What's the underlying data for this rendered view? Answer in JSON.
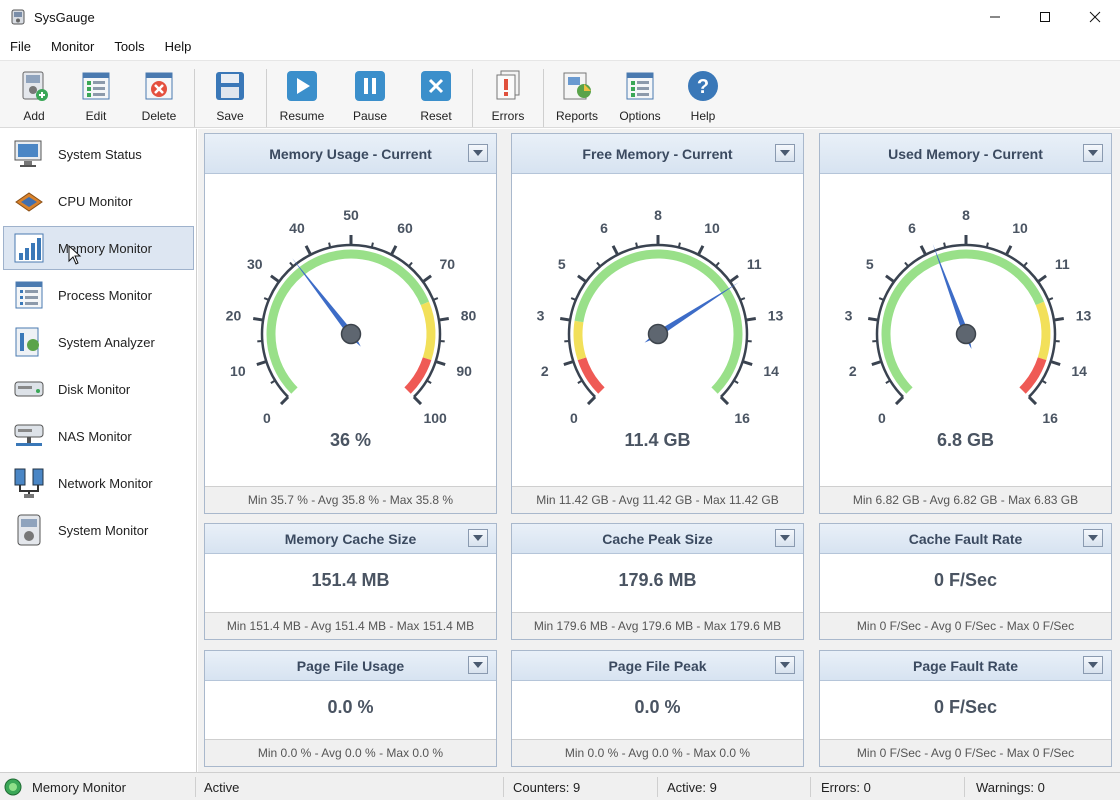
{
  "window": {
    "title": "SysGauge"
  },
  "menu": [
    "File",
    "Monitor",
    "Tools",
    "Help"
  ],
  "toolbar": {
    "add": "Add",
    "edit": "Edit",
    "delete": "Delete",
    "save": "Save",
    "resume": "Resume",
    "pause": "Pause",
    "reset": "Reset",
    "errors": "Errors",
    "reports": "Reports",
    "options": "Options",
    "help": "Help"
  },
  "sidebar": {
    "items": [
      {
        "label": "System Status",
        "icon": "monitor-icon"
      },
      {
        "label": "CPU Monitor",
        "icon": "cpu-icon"
      },
      {
        "label": "Memory Monitor",
        "icon": "memory-chart-icon",
        "active": true
      },
      {
        "label": "Process Monitor",
        "icon": "process-list-icon"
      },
      {
        "label": "System Analyzer",
        "icon": "analyzer-icon"
      },
      {
        "label": "Disk Monitor",
        "icon": "disk-icon"
      },
      {
        "label": "NAS Monitor",
        "icon": "nas-icon"
      },
      {
        "label": "Network Monitor",
        "icon": "network-icon"
      },
      {
        "label": "System Monitor",
        "icon": "system-monitor-icon"
      }
    ]
  },
  "gauges": [
    {
      "title": "Memory Usage - Current",
      "value_text": "36 %",
      "value": 36,
      "min": 0,
      "max": 100,
      "labels": [
        "0",
        "10",
        "20",
        "30",
        "40",
        "50",
        "60",
        "70",
        "80",
        "90",
        "100"
      ],
      "zones": [
        {
          "from": 0,
          "to": 75,
          "color": "#99e089"
        },
        {
          "from": 75,
          "to": 90,
          "color": "#f2e05a"
        },
        {
          "from": 90,
          "to": 100,
          "color": "#ef5a55"
        }
      ],
      "footer": "Min 35.7 % - Avg 35.8 % - Max 35.8 %"
    },
    {
      "title": "Free Memory - Current",
      "value_text": "11.4 GB",
      "value": 11.4,
      "min": 0,
      "max": 16,
      "labels": [
        "0",
        "2",
        "3",
        "5",
        "6",
        "8",
        "10",
        "11",
        "13",
        "14",
        "16"
      ],
      "zones": [
        {
          "from": 0,
          "to": 1.6,
          "color": "#ef5a55"
        },
        {
          "from": 1.6,
          "to": 3.2,
          "color": "#f2e05a"
        },
        {
          "from": 3.2,
          "to": 16,
          "color": "#99e089"
        }
      ],
      "footer": "Min 11.42 GB - Avg 11.42 GB - Max 11.42 GB"
    },
    {
      "title": "Used Memory - Current",
      "value_text": "6.8 GB",
      "value": 6.8,
      "min": 0,
      "max": 16,
      "labels": [
        "0",
        "2",
        "3",
        "5",
        "6",
        "8",
        "10",
        "11",
        "13",
        "14",
        "16"
      ],
      "zones": [
        {
          "from": 0,
          "to": 12,
          "color": "#99e089"
        },
        {
          "from": 12,
          "to": 14.4,
          "color": "#f2e05a"
        },
        {
          "from": 14.4,
          "to": 16,
          "color": "#ef5a55"
        }
      ],
      "footer": "Min 6.82 GB - Avg 6.82 GB - Max 6.83 GB"
    }
  ],
  "counters": [
    {
      "title": "Memory Cache Size",
      "value": "151.4 MB",
      "footer": "Min 151.4 MB - Avg 151.4 MB - Max 151.4 MB"
    },
    {
      "title": "Cache Peak Size",
      "value": "179.6 MB",
      "footer": "Min 179.6 MB - Avg 179.6 MB - Max 179.6 MB"
    },
    {
      "title": "Cache Fault Rate",
      "value": "0 F/Sec",
      "footer": "Min 0 F/Sec - Avg 0 F/Sec - Max 0 F/Sec"
    },
    {
      "title": "Page File Usage",
      "value": "0.0 %",
      "footer": "Min 0.0 % - Avg 0.0 % - Max 0.0 %"
    },
    {
      "title": "Page File Peak",
      "value": "0.0 %",
      "footer": "Min 0.0 % - Avg 0.0 % - Max 0.0 %"
    },
    {
      "title": "Page Fault Rate",
      "value": "0 F/Sec",
      "footer": "Min 0 F/Sec - Avg 0 F/Sec - Max 0 F/Sec"
    }
  ],
  "status": {
    "monitor": "Memory Monitor",
    "state": "Active",
    "counters": "Counters: 9",
    "active": "Active: 9",
    "errors": "Errors: 0",
    "warnings": "Warnings: 0"
  },
  "colors": {
    "accent": "#3a78b8",
    "panel_title": "#3b4a60",
    "needle": "#3d6cc7"
  }
}
